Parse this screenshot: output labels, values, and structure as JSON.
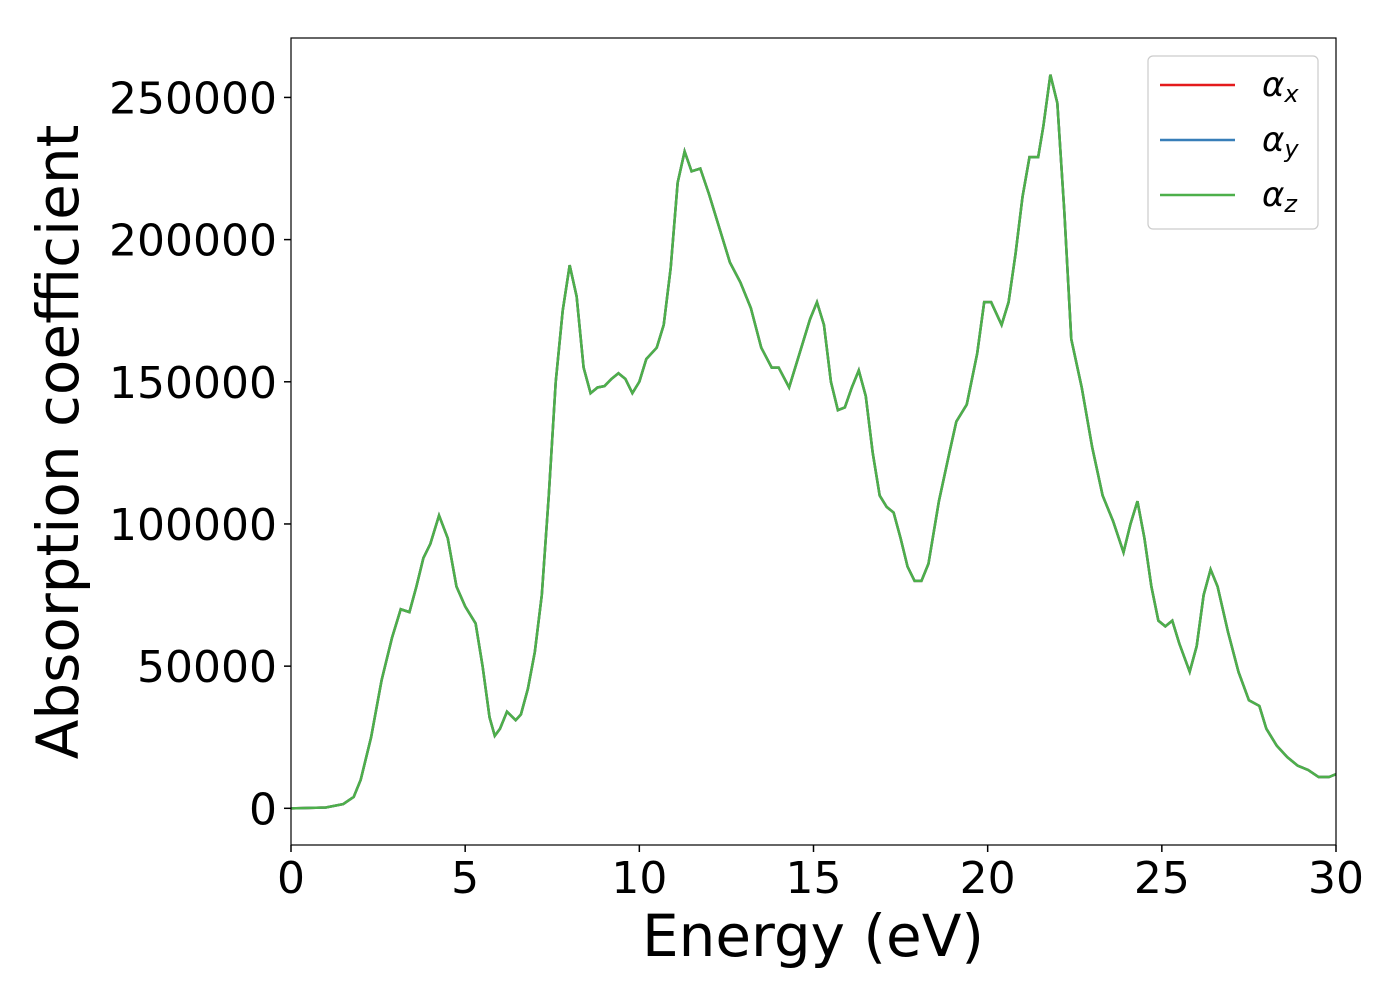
{
  "chart_data": {
    "type": "line",
    "xlabel": "Energy (eV)",
    "ylabel": "Absorption coefficient",
    "x": [
      0,
      1,
      1.5,
      1.8,
      2,
      2.3,
      2.6,
      2.9,
      3.15,
      3.4,
      3.6,
      3.8,
      4.0,
      4.25,
      4.5,
      4.75,
      5.0,
      5.3,
      5.5,
      5.7,
      5.85,
      6.0,
      6.2,
      6.45,
      6.6,
      6.8,
      7.0,
      7.2,
      7.4,
      7.6,
      7.8,
      8.0,
      8.2,
      8.4,
      8.6,
      8.8,
      9.0,
      9.2,
      9.4,
      9.6,
      9.8,
      10.0,
      10.2,
      10.5,
      10.7,
      10.9,
      11.1,
      11.3,
      11.5,
      11.75,
      12.0,
      12.3,
      12.6,
      12.9,
      13.2,
      13.5,
      13.8,
      14.0,
      14.3,
      14.6,
      14.9,
      15.1,
      15.3,
      15.5,
      15.7,
      15.9,
      16.1,
      16.3,
      16.5,
      16.7,
      16.9,
      17.1,
      17.3,
      17.5,
      17.7,
      17.9,
      18.1,
      18.3,
      18.6,
      18.9,
      19.1,
      19.4,
      19.7,
      19.9,
      20.1,
      20.4,
      20.6,
      20.8,
      21.0,
      21.2,
      21.45,
      21.6,
      21.8,
      22.0,
      22.2,
      22.4,
      22.7,
      23.0,
      23.3,
      23.6,
      23.9,
      24.1,
      24.3,
      24.5,
      24.7,
      24.9,
      25.1,
      25.3,
      25.5,
      25.8,
      26.0,
      26.2,
      26.4,
      26.6,
      26.9,
      27.2,
      27.5,
      27.8,
      28.0,
      28.3,
      28.6,
      28.9,
      29.2,
      29.5,
      29.8,
      30.0
    ],
    "series": [
      {
        "name": "αx",
        "color": "#e41a1c",
        "values": [
          0,
          300,
          1500,
          4000,
          10000,
          25000,
          45000,
          60000,
          70000,
          69000,
          78000,
          88000,
          93000,
          103000,
          95000,
          78000,
          71000,
          65000,
          50000,
          32000,
          25500,
          28000,
          34000,
          31000,
          33000,
          42000,
          55000,
          75000,
          110000,
          150000,
          175000,
          191000,
          180000,
          155000,
          146000,
          148000,
          148500,
          151000,
          153000,
          151000,
          146000,
          150000,
          158000,
          162000,
          170000,
          190000,
          220000,
          231000,
          224000,
          225000,
          216000,
          204000,
          192000,
          185000,
          176000,
          162000,
          155000,
          155000,
          148000,
          160000,
          172000,
          178000,
          170000,
          150000,
          140000,
          141000,
          148000,
          154000,
          145000,
          125000,
          110000,
          106000,
          104000,
          95000,
          85000,
          80000,
          80000,
          86000,
          108000,
          125000,
          136000,
          142000,
          160000,
          178000,
          178000,
          170000,
          178000,
          195000,
          215000,
          229000,
          229000,
          240000,
          258000,
          248000,
          210000,
          165000,
          148000,
          127000,
          110000,
          101000,
          90000,
          100000,
          108000,
          95000,
          78000,
          66000,
          64000,
          66000,
          58000,
          48000,
          57000,
          75000,
          84000,
          78000,
          62000,
          48000,
          38000,
          36000,
          28000,
          22000,
          18000,
          15000,
          13500,
          11000,
          11000,
          12000
        ]
      },
      {
        "name": "αy",
        "color": "#377eb8",
        "values": [
          0,
          300,
          1500,
          4000,
          10000,
          25000,
          45000,
          60000,
          70000,
          69000,
          78000,
          88000,
          93000,
          103000,
          95000,
          78000,
          71000,
          65000,
          50000,
          32000,
          25500,
          28000,
          34000,
          31000,
          33000,
          42000,
          55000,
          75000,
          110000,
          150000,
          175000,
          191000,
          180000,
          155000,
          146000,
          148000,
          148500,
          151000,
          153000,
          151000,
          146000,
          150000,
          158000,
          162000,
          170000,
          190000,
          220000,
          231000,
          224000,
          225000,
          216000,
          204000,
          192000,
          185000,
          176000,
          162000,
          155000,
          155000,
          148000,
          160000,
          172000,
          178000,
          170000,
          150000,
          140000,
          141000,
          148000,
          154000,
          145000,
          125000,
          110000,
          106000,
          104000,
          95000,
          85000,
          80000,
          80000,
          86000,
          108000,
          125000,
          136000,
          142000,
          160000,
          178000,
          178000,
          170000,
          178000,
          195000,
          215000,
          229000,
          229000,
          240000,
          258000,
          248000,
          210000,
          165000,
          148000,
          127000,
          110000,
          101000,
          90000,
          100000,
          108000,
          95000,
          78000,
          66000,
          64000,
          66000,
          58000,
          48000,
          57000,
          75000,
          84000,
          78000,
          62000,
          48000,
          38000,
          36000,
          28000,
          22000,
          18000,
          15000,
          13500,
          11000,
          11000,
          12000
        ]
      },
      {
        "name": "αz",
        "color": "#4daf4a",
        "values": [
          0,
          300,
          1500,
          4000,
          10000,
          25000,
          45000,
          60000,
          70000,
          69000,
          78000,
          88000,
          93000,
          103000,
          95000,
          78000,
          71000,
          65000,
          50000,
          32000,
          25500,
          28000,
          34000,
          31000,
          33000,
          42000,
          55000,
          75000,
          110000,
          150000,
          175000,
          191000,
          180000,
          155000,
          146000,
          148000,
          148500,
          151000,
          153000,
          151000,
          146000,
          150000,
          158000,
          162000,
          170000,
          190000,
          220000,
          231000,
          224000,
          225000,
          216000,
          204000,
          192000,
          185000,
          176000,
          162000,
          155000,
          155000,
          148000,
          160000,
          172000,
          178000,
          170000,
          150000,
          140000,
          141000,
          148000,
          154000,
          145000,
          125000,
          110000,
          106000,
          104000,
          95000,
          85000,
          80000,
          80000,
          86000,
          108000,
          125000,
          136000,
          142000,
          160000,
          178000,
          178000,
          170000,
          178000,
          195000,
          215000,
          229000,
          229000,
          240000,
          258000,
          248000,
          210000,
          165000,
          148000,
          127000,
          110000,
          101000,
          90000,
          100000,
          108000,
          95000,
          78000,
          66000,
          64000,
          66000,
          58000,
          48000,
          57000,
          75000,
          84000,
          78000,
          62000,
          48000,
          38000,
          36000,
          28000,
          22000,
          18000,
          15000,
          13500,
          11000,
          11000,
          12000
        ]
      }
    ],
    "xlim": [
      0,
      30
    ],
    "xticks": [
      0,
      5,
      10,
      15,
      20,
      25,
      30
    ],
    "ylim": [
      -12900,
      270900
    ],
    "yticks": [
      0,
      50000,
      100000,
      150000,
      200000,
      250000
    ],
    "legend": "upper right"
  }
}
